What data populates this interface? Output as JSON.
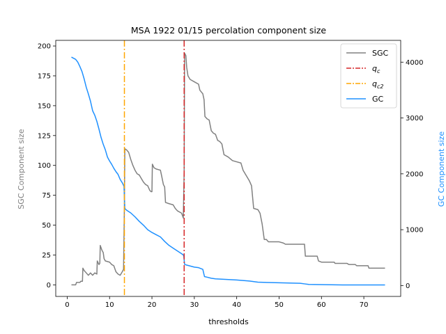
{
  "chart_data": {
    "type": "line",
    "title": "MSA 1922 01/15 percolation component size",
    "xlabel": "thresholds",
    "ylabel_left": "SGC Component size",
    "ylabel_right": "GC Component size",
    "xlim": [
      -2.7,
      78.7
    ],
    "ylim_left": [
      -9.7,
      204.7
    ],
    "ylim_right": [
      -195,
      4390
    ],
    "x_ticks": [
      0,
      10,
      20,
      30,
      40,
      50,
      60,
      70
    ],
    "y_ticks_left": [
      0,
      25,
      50,
      75,
      100,
      125,
      150,
      175,
      200
    ],
    "y_ticks_right": [
      0,
      1000,
      2000,
      3000,
      4000
    ],
    "colors": {
      "sgc": "#808080",
      "qc": "#d62728",
      "qc2": "#ffa500",
      "gc": "#1e90ff",
      "left_axis_label": "#808080",
      "right_axis_label": "#1e90ff"
    },
    "vlines": [
      {
        "name": "q_c",
        "x": 27.6,
        "color": "#d62728"
      },
      {
        "name": "q_c2",
        "x": 13.5,
        "color": "#ffa500"
      }
    ],
    "legend": {
      "position": "top-right",
      "entries": [
        {
          "label": "SGC",
          "style": "solid",
          "color": "#808080"
        },
        {
          "label": "q",
          "sub": "c",
          "style": "dashdot",
          "color": "#d62728"
        },
        {
          "label": "q",
          "sub": "c2",
          "style": "dashdot",
          "color": "#ffa500"
        },
        {
          "label": "GC",
          "style": "solid",
          "color": "#1e90ff"
        }
      ]
    },
    "series": [
      {
        "name": "SGC",
        "axis": "left",
        "color": "#808080",
        "points": [
          [
            1,
            0
          ],
          [
            2,
            0
          ],
          [
            2.2,
            2
          ],
          [
            3,
            2
          ],
          [
            3.2,
            3
          ],
          [
            3.6,
            3
          ],
          [
            3.7,
            14
          ],
          [
            4,
            12
          ],
          [
            4.5,
            10
          ],
          [
            5,
            8
          ],
          [
            5.5,
            10
          ],
          [
            6,
            8
          ],
          [
            6.5,
            10
          ],
          [
            7,
            9
          ],
          [
            7.1,
            20
          ],
          [
            7.5,
            17
          ],
          [
            7.7,
            18
          ],
          [
            7.8,
            33
          ],
          [
            8.2,
            29
          ],
          [
            8.5,
            27
          ],
          [
            8.7,
            22
          ],
          [
            9,
            20
          ],
          [
            10,
            19
          ],
          [
            10.5,
            17
          ],
          [
            11,
            16
          ],
          [
            11.5,
            11
          ],
          [
            12,
            9
          ],
          [
            12.5,
            8
          ],
          [
            13,
            11
          ],
          [
            13.3,
            13
          ],
          [
            13.5,
            66
          ],
          [
            13.6,
            114
          ],
          [
            14,
            113
          ],
          [
            14.5,
            111
          ],
          [
            15,
            105
          ],
          [
            15.5,
            100
          ],
          [
            16,
            96
          ],
          [
            16.5,
            93
          ],
          [
            17,
            92
          ],
          [
            17.5,
            89
          ],
          [
            18,
            86
          ],
          [
            18.5,
            84
          ],
          [
            19,
            83
          ],
          [
            19.5,
            79
          ],
          [
            19.8,
            78
          ],
          [
            20,
            78
          ],
          [
            20.1,
            101
          ],
          [
            20.5,
            98
          ],
          [
            21,
            97
          ],
          [
            22,
            96
          ],
          [
            22.3,
            91
          ],
          [
            22.7,
            84
          ],
          [
            23,
            82
          ],
          [
            23.2,
            69
          ],
          [
            24,
            68
          ],
          [
            25,
            67
          ],
          [
            25.5,
            64
          ],
          [
            26,
            62
          ],
          [
            27,
            60
          ],
          [
            27.4,
            56
          ],
          [
            27.6,
            95
          ],
          [
            27.7,
            194
          ],
          [
            28,
            192
          ],
          [
            28.2,
            182
          ],
          [
            28.5,
            175
          ],
          [
            29,
            172
          ],
          [
            30,
            170
          ],
          [
            31,
            168
          ],
          [
            31.3,
            163
          ],
          [
            32,
            160
          ],
          [
            32.3,
            155
          ],
          [
            32.5,
            141
          ],
          [
            33,
            139
          ],
          [
            33.5,
            138
          ],
          [
            34,
            129
          ],
          [
            34.5,
            127
          ],
          [
            35,
            126
          ],
          [
            35.5,
            121
          ],
          [
            36,
            120
          ],
          [
            36.5,
            118
          ],
          [
            37,
            109
          ],
          [
            38,
            107
          ],
          [
            39,
            104
          ],
          [
            40,
            103
          ],
          [
            41,
            102
          ],
          [
            41.5,
            96
          ],
          [
            42,
            93
          ],
          [
            42.5,
            90
          ],
          [
            43,
            87
          ],
          [
            43.5,
            83
          ],
          [
            44,
            64
          ],
          [
            45,
            63
          ],
          [
            45.5,
            60
          ],
          [
            46,
            51
          ],
          [
            46.5,
            38
          ],
          [
            47,
            38
          ],
          [
            47.5,
            36
          ],
          [
            50,
            36
          ],
          [
            51,
            35
          ],
          [
            51.5,
            34
          ],
          [
            56,
            34
          ],
          [
            56.2,
            24
          ],
          [
            59,
            24
          ],
          [
            59.3,
            20
          ],
          [
            60,
            19
          ],
          [
            63,
            19
          ],
          [
            63.2,
            18
          ],
          [
            66,
            18
          ],
          [
            66.5,
            17
          ],
          [
            68,
            17
          ],
          [
            68.3,
            16
          ],
          [
            71,
            16
          ],
          [
            71.2,
            14
          ],
          [
            75,
            14
          ]
        ]
      },
      {
        "name": "GC",
        "axis": "right",
        "color": "#1e90ff",
        "points": [
          [
            1,
            4090
          ],
          [
            1.5,
            4070
          ],
          [
            2,
            4050
          ],
          [
            2.5,
            4000
          ],
          [
            3,
            3920
          ],
          [
            3.5,
            3830
          ],
          [
            4,
            3700
          ],
          [
            4.5,
            3550
          ],
          [
            5,
            3430
          ],
          [
            5.5,
            3300
          ],
          [
            6,
            3130
          ],
          [
            6.5,
            3050
          ],
          [
            7,
            2940
          ],
          [
            7.5,
            2800
          ],
          [
            8,
            2650
          ],
          [
            8.5,
            2530
          ],
          [
            9,
            2430
          ],
          [
            9.5,
            2300
          ],
          [
            10,
            2230
          ],
          [
            10.5,
            2170
          ],
          [
            11,
            2100
          ],
          [
            11.5,
            2040
          ],
          [
            12,
            1990
          ],
          [
            12.5,
            1900
          ],
          [
            13,
            1840
          ],
          [
            13.4,
            1780
          ],
          [
            13.6,
            1380
          ],
          [
            14,
            1350
          ],
          [
            15,
            1300
          ],
          [
            16,
            1230
          ],
          [
            17,
            1150
          ],
          [
            18,
            1080
          ],
          [
            19,
            1000
          ],
          [
            20,
            950
          ],
          [
            21,
            910
          ],
          [
            22,
            870
          ],
          [
            23,
            790
          ],
          [
            24,
            720
          ],
          [
            25,
            670
          ],
          [
            26,
            620
          ],
          [
            27,
            570
          ],
          [
            27.5,
            540
          ],
          [
            27.7,
            380
          ],
          [
            28,
            370
          ],
          [
            29,
            350
          ],
          [
            30,
            330
          ],
          [
            31,
            320
          ],
          [
            32,
            290
          ],
          [
            32.4,
            160
          ],
          [
            33,
            150
          ],
          [
            34,
            130
          ],
          [
            35,
            120
          ],
          [
            40,
            100
          ],
          [
            43,
            80
          ],
          [
            45,
            60
          ],
          [
            50,
            50
          ],
          [
            55,
            40
          ],
          [
            56,
            30
          ],
          [
            57,
            20
          ],
          [
            65,
            10
          ],
          [
            75,
            10
          ]
        ]
      }
    ]
  }
}
